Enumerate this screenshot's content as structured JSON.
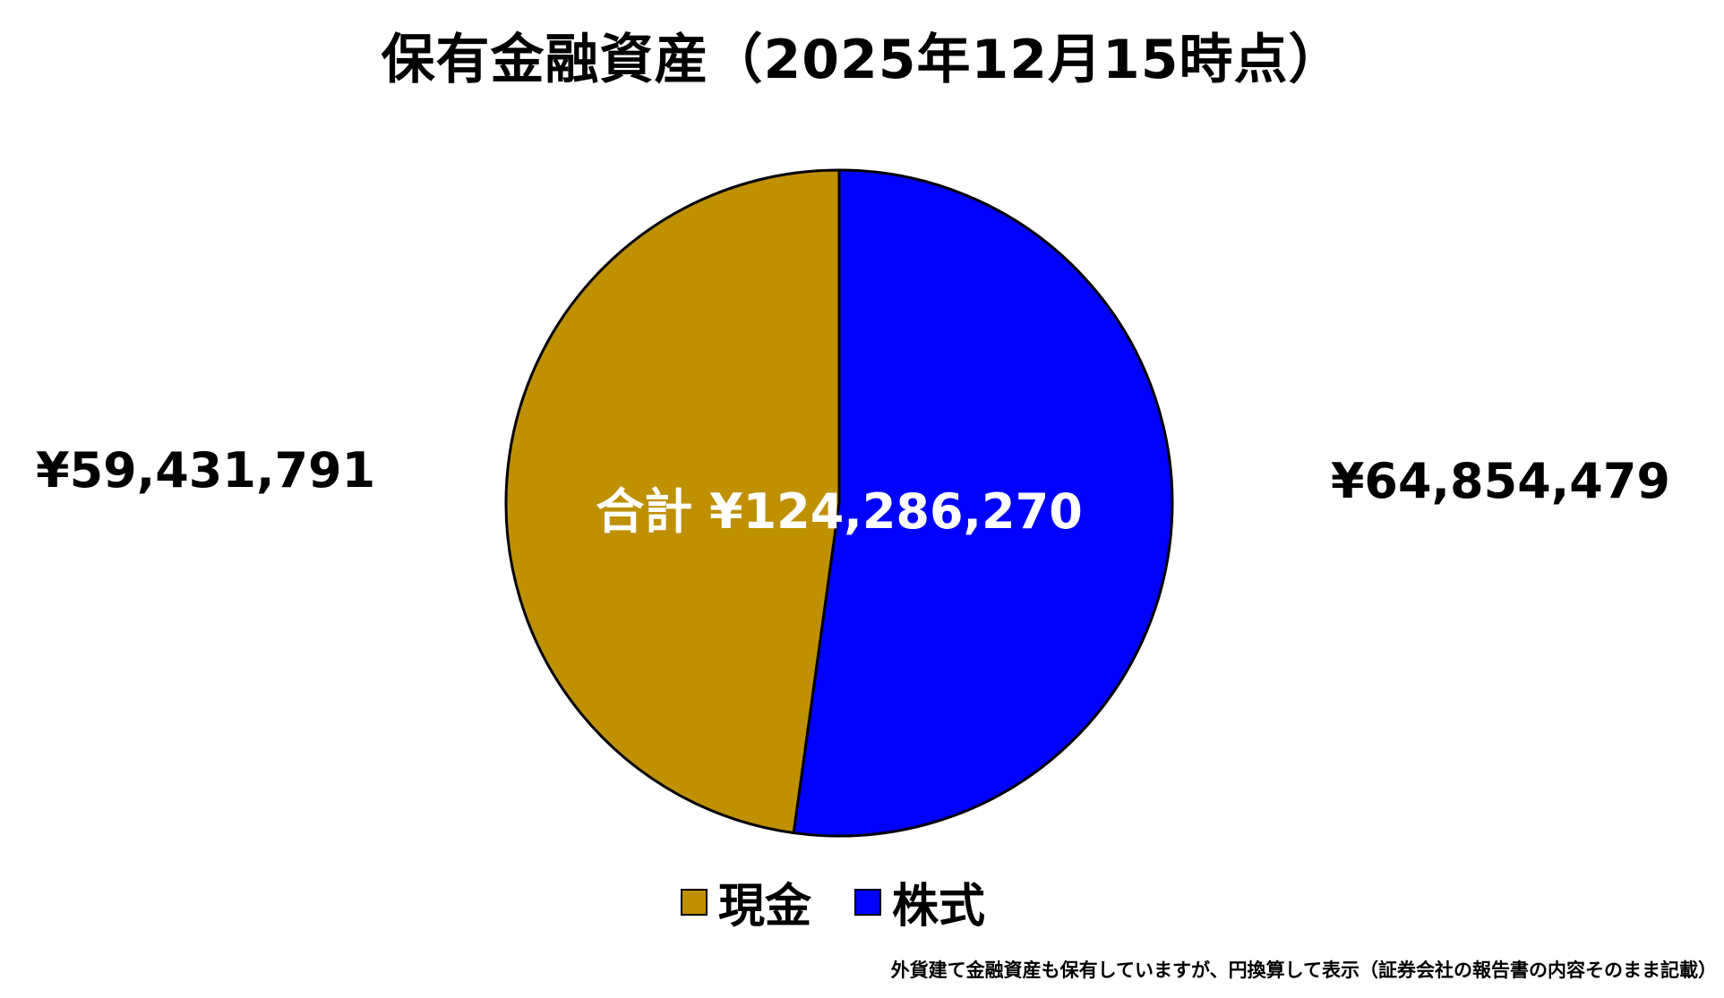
{
  "chart_data": {
    "type": "pie",
    "title": "保有金融資産（2025年12月15時点）",
    "categories": [
      "現金",
      "株式"
    ],
    "values": [
      59431791,
      64854479
    ],
    "value_labels": [
      "¥59,431,791",
      "¥64,854,479"
    ],
    "colors": [
      "#BF9000",
      "#0000FF"
    ],
    "total_label": "合計 ¥124,286,270",
    "legend_position": "bottom",
    "start_angle": "12 o'clock",
    "direction": "clockwise"
  },
  "footnote": "外貨建て金融資産も保有していますが、円換算して表示（証券会社の報告書の内容そのまま記載）"
}
